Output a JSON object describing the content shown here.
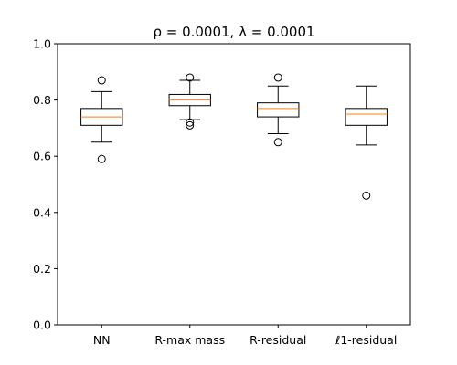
{
  "chart_data": {
    "type": "box",
    "title": "ρ = 0.0001, λ = 0.0001",
    "xlabel": "",
    "ylabel": "",
    "ylim": [
      0.0,
      1.0
    ],
    "yticks": [
      "0.0",
      "0.2",
      "0.4",
      "0.6",
      "0.8",
      "1.0"
    ],
    "grid": false,
    "categories": [
      "NN",
      "R-max mass",
      "R-residual",
      "ℓ1-residual"
    ],
    "boxes": [
      {
        "label": "NN",
        "whisker_low": 0.65,
        "q1": 0.71,
        "median": 0.74,
        "q3": 0.77,
        "whisker_high": 0.83,
        "outliers": [
          0.87,
          0.59
        ]
      },
      {
        "label": "R-max mass",
        "whisker_low": 0.73,
        "q1": 0.78,
        "median": 0.8,
        "q3": 0.82,
        "whisker_high": 0.87,
        "outliers": [
          0.88,
          0.72,
          0.71
        ]
      },
      {
        "label": "R-residual",
        "whisker_low": 0.68,
        "q1": 0.74,
        "median": 0.77,
        "q3": 0.79,
        "whisker_high": 0.85,
        "outliers": [
          0.88,
          0.65
        ]
      },
      {
        "label": "ℓ1-residual",
        "whisker_low": 0.64,
        "q1": 0.71,
        "median": 0.75,
        "q3": 0.77,
        "whisker_high": 0.85,
        "outliers": [
          0.46
        ]
      }
    ],
    "colors": {
      "box": "#000000",
      "median": "#ff7f0e",
      "outlier": "#000000"
    }
  }
}
